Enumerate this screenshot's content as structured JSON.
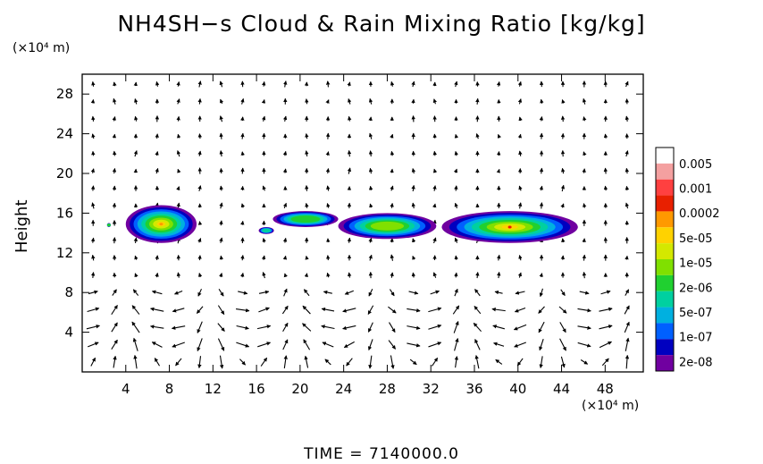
{
  "chart_data": {
    "type": "heatmap",
    "title": "NH4SH−s Cloud & Rain Mixing Ratio [kg/kg]",
    "xlabel": "",
    "ylabel": "Height",
    "x_unit": "(×10⁴ m)",
    "y_unit": "(×10⁴ m)",
    "footer": "TIME = 7140000.0",
    "xlim": [
      0,
      51.5
    ],
    "ylim": [
      0,
      30
    ],
    "xticks": [
      4,
      8,
      12,
      16,
      20,
      24,
      28,
      32,
      36,
      40,
      44,
      48
    ],
    "yticks": [
      4,
      8,
      12,
      16,
      20,
      24,
      28
    ],
    "colorbar": {
      "labels": [
        "0.005",
        "0.001",
        "0.0002",
        "5e-05",
        "1e-05",
        "2e-06",
        "5e-07",
        "1e-07",
        "2e-08"
      ],
      "colors": [
        "#ffffff",
        "#f4a0a0",
        "#ff4040",
        "#e82000",
        "#ff9900",
        "#ffd200",
        "#d4e800",
        "#80e000",
        "#20d030",
        "#00d0a0",
        "#00b0e0",
        "#0060ff",
        "#0000c0",
        "#7000a0"
      ]
    },
    "cloud_regions": [
      {
        "x": [
          2.3,
          2.6
        ],
        "y": [
          14.6,
          15.0
        ],
        "peak": 8
      },
      {
        "x": [
          4.0,
          10.5
        ],
        "y": [
          13.0,
          16.8
        ],
        "peak": 4
      },
      {
        "x": [
          16.2,
          17.6
        ],
        "y": [
          13.9,
          14.6
        ],
        "peak": 9
      },
      {
        "x": [
          17.5,
          23.5
        ],
        "y": [
          14.6,
          16.2
        ],
        "peak": 8
      },
      {
        "x": [
          23.5,
          32.5
        ],
        "y": [
          13.4,
          16.0
        ],
        "peak": 7
      },
      {
        "x": [
          33.0,
          45.5
        ],
        "y": [
          13.0,
          16.2
        ],
        "peak": 3
      }
    ]
  },
  "colors": {
    "background": "#ffffff",
    "foreground": "#000000"
  }
}
